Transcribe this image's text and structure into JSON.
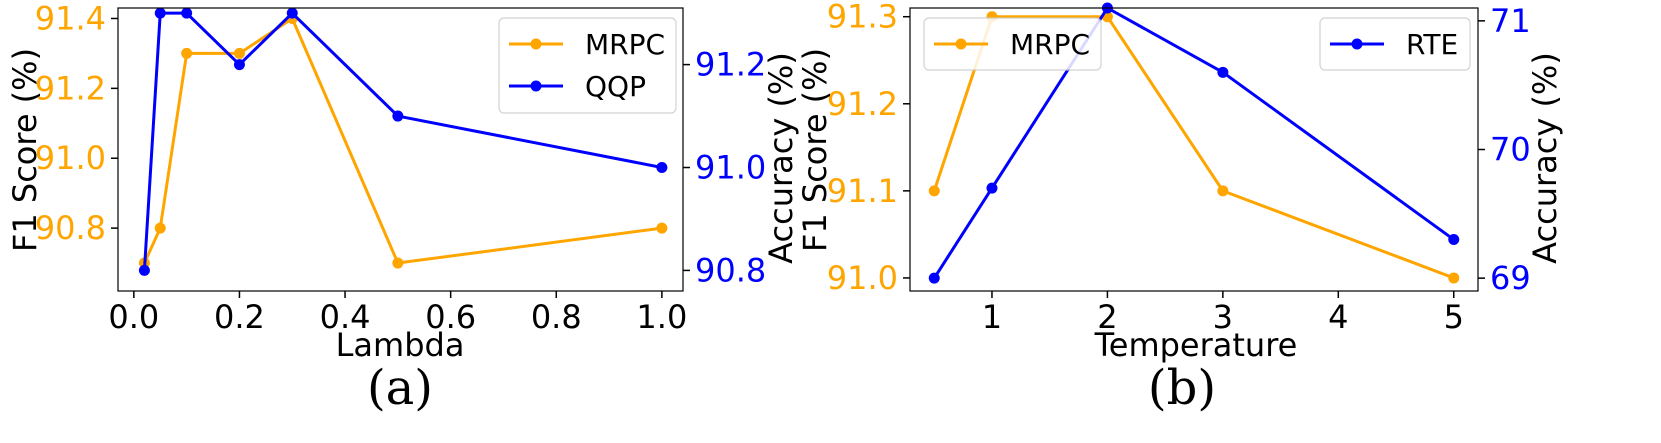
{
  "colors": {
    "orange": "#FFA500",
    "blue": "#0000FF",
    "black": "#000000"
  },
  "chart_data": [
    {
      "type": "line",
      "caption": "(a)",
      "xlabel": "Lambda",
      "ylabel_left": "F1 Score (%)",
      "ylabel_right": "Accuracy (%)",
      "xlim": [
        -0.03,
        1.04
      ],
      "ylim_left": [
        90.62,
        91.43
      ],
      "ylim_right": [
        90.76,
        91.31
      ],
      "xticks": [
        0.0,
        0.2,
        0.4,
        0.6,
        0.8,
        1.0
      ],
      "xtick_labels": [
        "0.0",
        "0.2",
        "0.4",
        "0.6",
        "0.8",
        "1.0"
      ],
      "yticks_left": [
        90.8,
        91.0,
        91.2,
        91.4
      ],
      "ytick_labels_left": [
        "90.8",
        "91.0",
        "91.2",
        "91.4"
      ],
      "yticks_right": [
        90.8,
        91.0,
        91.2
      ],
      "ytick_labels_right": [
        "90.8",
        "91.0",
        "91.2"
      ],
      "series": [
        {
          "name": "MRPC",
          "axis": "left",
          "color": "#FFA500",
          "x": [
            0.02,
            0.05,
            0.1,
            0.2,
            0.3,
            0.5,
            1.0
          ],
          "y": [
            90.7,
            90.8,
            91.3,
            91.3,
            91.4,
            90.7,
            90.8
          ]
        },
        {
          "name": "QQP",
          "axis": "right",
          "color": "#0000FF",
          "x": [
            0.02,
            0.05,
            0.1,
            0.2,
            0.3,
            0.5,
            1.0
          ],
          "y": [
            90.8,
            91.3,
            91.3,
            91.2,
            91.3,
            91.1,
            91.0
          ]
        }
      ],
      "legend": {
        "placement": "top-right",
        "entries": [
          "MRPC",
          "QQP"
        ]
      }
    },
    {
      "type": "line",
      "caption": "(b)",
      "xlabel": "Temperature",
      "ylabel_left": "F1 Score (%)",
      "ylabel_right": "Accuracy (%)",
      "xlim": [
        0.29,
        5.21
      ],
      "ylim_left": [
        90.985,
        91.31
      ],
      "ylim_right": [
        68.9,
        71.1
      ],
      "xticks": [
        1,
        2,
        3,
        4,
        5
      ],
      "xtick_labels": [
        "1",
        "2",
        "3",
        "4",
        "5"
      ],
      "yticks_left": [
        91.0,
        91.1,
        91.2,
        91.3
      ],
      "ytick_labels_left": [
        "91.0",
        "91.1",
        "91.2",
        "91.3"
      ],
      "yticks_right": [
        69,
        70,
        71
      ],
      "ytick_labels_right": [
        "69",
        "70",
        "71"
      ],
      "series": [
        {
          "name": "MRPC",
          "axis": "left",
          "color": "#FFA500",
          "x": [
            0.5,
            1,
            2,
            3,
            5
          ],
          "y": [
            91.1,
            91.3,
            91.3,
            91.1,
            91.0
          ]
        },
        {
          "name": "RTE",
          "axis": "right",
          "color": "#0000FF",
          "x": [
            0.5,
            1,
            2,
            3,
            5
          ],
          "y": [
            69.0,
            69.7,
            71.1,
            70.6,
            69.3
          ]
        }
      ],
      "legend_left": {
        "placement": "top-left",
        "entries": [
          "MRPC"
        ]
      },
      "legend_right": {
        "placement": "top-right",
        "entries": [
          "RTE"
        ]
      }
    }
  ]
}
